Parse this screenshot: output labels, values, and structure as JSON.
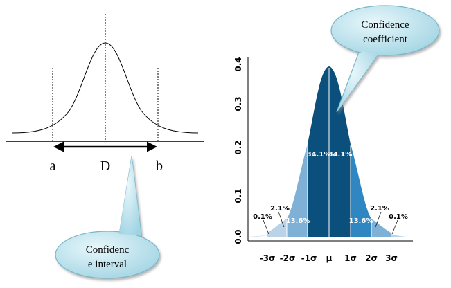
{
  "left_diagram": {
    "label_a": "a",
    "label_d": "D",
    "label_b": "b",
    "callout_text_line1": "Confidenc",
    "callout_text_line2": "e interval"
  },
  "right_diagram": {
    "callout_text_line1": "Confidence",
    "callout_text_line2": "coefficient",
    "y_ticks": [
      "0.0",
      "0.1",
      "0.2",
      "0.3",
      "0.4"
    ],
    "x_ticks": [
      "-3σ",
      "-2σ",
      "-1σ",
      "μ",
      "1σ",
      "2σ",
      "3σ"
    ],
    "percent_inner_left": "34.1%",
    "percent_inner_right": "34.1%",
    "percent_mid_left": "13.6%",
    "percent_mid_right": "13.6%",
    "percent_outer_left": "2.1%",
    "percent_outer_right": "2.1%",
    "percent_tail_left": "0.1%",
    "percent_tail_right": "0.1%"
  },
  "colors": {
    "band_inner": "#0b4f7c",
    "band_mid": "#2f86c0",
    "band_outer": "#7fb1d6",
    "band_tail": "#b9d3e8",
    "callout_fill": "#bfe6ef",
    "callout_stroke": "#7ab6c9"
  }
}
